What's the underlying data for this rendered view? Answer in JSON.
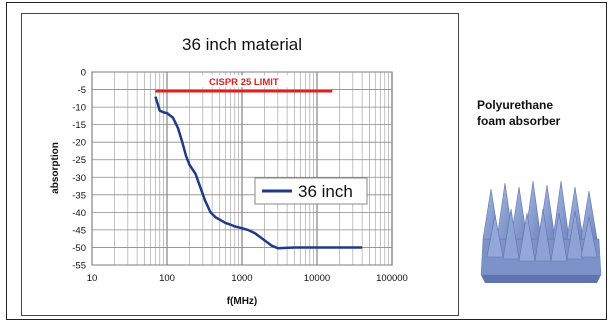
{
  "chart_data": {
    "type": "line",
    "title": "36 inch material",
    "xlabel": "f(MHz)",
    "ylabel": "absorption",
    "xscale": "log",
    "xlim": [
      10,
      100000
    ],
    "ylim": [
      -55,
      0
    ],
    "x_ticks": [
      "10",
      "100",
      "1000",
      "10000",
      "100000"
    ],
    "y_ticks": [
      "0",
      "-5",
      "-10",
      "-15",
      "-20",
      "-25",
      "-30",
      "-35",
      "-40",
      "-45",
      "-50",
      "-55"
    ],
    "grid": true,
    "legend_position": "middle-right",
    "series": [
      {
        "name": "36 inch",
        "color": "#1f3a8a",
        "x": [
          70,
          75,
          80,
          90,
          100,
          120,
          140,
          160,
          180,
          200,
          240,
          280,
          320,
          380,
          450,
          500,
          600,
          700,
          800,
          1000,
          1200,
          1500,
          2000,
          2500,
          3000,
          5000,
          10000,
          20000,
          40000
        ],
        "y": [
          -7,
          -9,
          -11,
          -11.5,
          -11.7,
          -13,
          -16,
          -20,
          -24,
          -26.5,
          -29,
          -33,
          -36.5,
          -40,
          -41.5,
          -42,
          -43,
          -43.5,
          -44,
          -44.5,
          -45,
          -46,
          -48,
          -49.5,
          -50.2,
          -50,
          -50,
          -50,
          -50
        ]
      }
    ],
    "annotations": [
      {
        "label": "CISPR 25 LIMIT",
        "y": -5.5,
        "x_range": [
          70,
          16000
        ],
        "color": "#e0201b"
      }
    ]
  },
  "side_panel": {
    "title_lines": [
      "Polyurethane",
      "foam absorber"
    ],
    "image_icon": "pyramid-foam-absorber",
    "image_color": "#8aa0d0"
  }
}
